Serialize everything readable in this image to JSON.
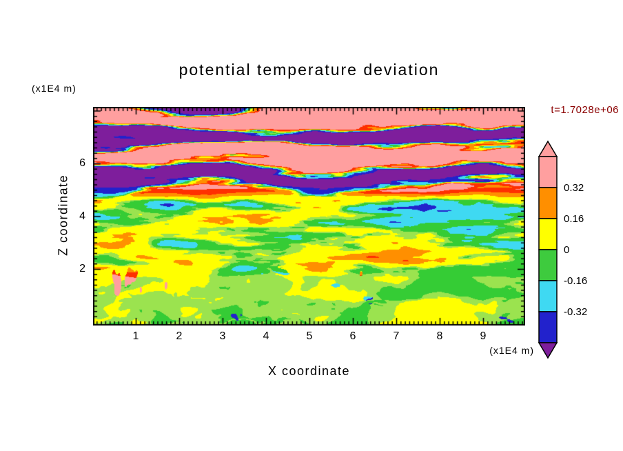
{
  "chart_data": {
    "type": "heatmap",
    "title": "potential temperature deviation",
    "xlabel": "X coordinate",
    "ylabel": "Z coordinate",
    "x_unit_label": "(x1E4 m)",
    "z_unit_label": "(x1E4 m)",
    "timestamp_label": "t=1.7028e+06",
    "timestamp_color": "#8b0000",
    "axis_color": "#000000",
    "x_axis": {
      "ticks": [
        1,
        2,
        3,
        4,
        5,
        6,
        7,
        8,
        9
      ],
      "range": [
        0,
        9.95
      ],
      "unit": "x1E4 m"
    },
    "z_axis": {
      "ticks": [
        2,
        4,
        6
      ],
      "range": [
        0,
        8.2
      ],
      "unit": "x1E4 m"
    },
    "colorbar": {
      "tick_labels": [
        "0.32",
        "0.16",
        "0",
        "-0.16",
        "-0.32"
      ],
      "segments_top_to_bottom": [
        {
          "color": "#ff9f9f",
          "range": "0.32 .. 0.48"
        },
        {
          "color": "#ff8f00",
          "range": "0.16 .. 0.32"
        },
        {
          "color": "#ffff00",
          "range": "0 .. 0.16"
        },
        {
          "color": "#3ecb3e",
          "range": "-0.16 .. 0"
        },
        {
          "color": "#3fd9f2",
          "range": "-0.32 .. -0.16"
        },
        {
          "color": "#2222cc",
          "range": "-0.48 .. -0.32"
        }
      ],
      "arrow_up_color": "#ff9f9f",
      "arrow_down_color": "#7e1e9c"
    },
    "field": {
      "description": "Filled-contour turbulence field: stratified salmon/purple wave layers aloft, mixed turbulent mid-levels (green/yellow/orange/red with blue-purple filaments), convective boundary layer at bottom (green/yellow-green with cyan and dark-blue blobs and narrow orange-red plumes).",
      "levels": [
        -0.48,
        -0.32,
        -0.16,
        0,
        0.16,
        0.32,
        0.48
      ],
      "palette": [
        {
          "max": -0.48,
          "color": "#7e1e9c"
        },
        {
          "max": -0.32,
          "color": "#2222cc"
        },
        {
          "max": -0.16,
          "color": "#3fd9f2"
        },
        {
          "max": -0.05,
          "color": "#35cc35"
        },
        {
          "max": 0.0,
          "color": "#9be34f"
        },
        {
          "max": 0.16,
          "color": "#ffff00"
        },
        {
          "max": 0.32,
          "color": "#ff8f00"
        },
        {
          "max": 0.44,
          "color": "#ff3000"
        },
        {
          "max": 99,
          "color": "#ff9f9f"
        }
      ],
      "seed": 7
    }
  }
}
